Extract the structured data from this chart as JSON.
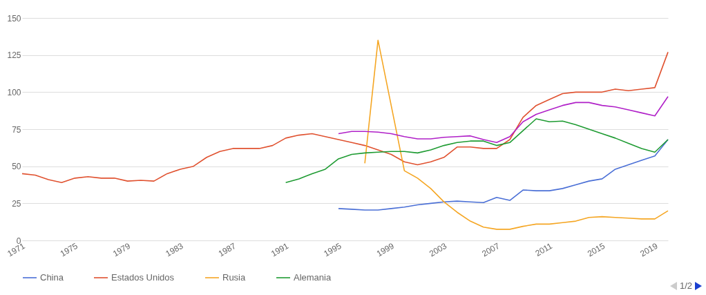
{
  "chart_data": {
    "type": "line",
    "legend": "bottom",
    "grid": "y",
    "line_style": "solid",
    "xlim": [
      1971,
      2020
    ],
    "xticks": [
      1971,
      1975,
      1979,
      1983,
      1987,
      1991,
      1995,
      1999,
      2003,
      2007,
      2011,
      2015,
      2019
    ],
    "ylim": [
      0,
      150
    ],
    "yticks": [
      0,
      25,
      50,
      75,
      100,
      125,
      150
    ],
    "annotations": [
      "1/2"
    ],
    "series": [
      {
        "name": "China",
        "color": "#4a6fd6",
        "x": [
          1995,
          1996,
          1997,
          1998,
          1999,
          2000,
          2001,
          2002,
          2003,
          2004,
          2005,
          2006,
          2007,
          2008,
          2009,
          2010,
          2011,
          2012,
          2013,
          2014,
          2015,
          2016,
          2017,
          2018,
          2019,
          2020
        ],
        "values": [
          21.5,
          21,
          20.5,
          20.5,
          21.5,
          22.5,
          24,
          25,
          26,
          26.5,
          26,
          25.5,
          29,
          27,
          34,
          33.5,
          33.5,
          35,
          37.5,
          40,
          41.5,
          48,
          51,
          54,
          57,
          68
        ]
      },
      {
        "name": "Estados Unidos",
        "color": "#e0512f",
        "x": [
          1971,
          1972,
          1973,
          1974,
          1975,
          1976,
          1977,
          1978,
          1979,
          1980,
          1981,
          1982,
          1983,
          1984,
          1985,
          1986,
          1987,
          1988,
          1989,
          1990,
          1991,
          1992,
          1993,
          1994,
          1995,
          1996,
          1997,
          1998,
          1999,
          2000,
          2001,
          2002,
          2003,
          2004,
          2005,
          2006,
          2007,
          2008,
          2009,
          2010,
          2011,
          2012,
          2013,
          2014,
          2015,
          2016,
          2017,
          2018,
          2019,
          2020
        ],
        "values": [
          45,
          44,
          41,
          39,
          42,
          43,
          42,
          42,
          40,
          40.5,
          40,
          45,
          48,
          50,
          56,
          60,
          62,
          62,
          62,
          64,
          69,
          71,
          72,
          70,
          68,
          66,
          64,
          61,
          58,
          53,
          51,
          53,
          56,
          63,
          63,
          62,
          62,
          68,
          83,
          91,
          95,
          99,
          100,
          100,
          100,
          102,
          101,
          102,
          103,
          127
        ]
      },
      {
        "name": "Rusia",
        "color": "#f5a623",
        "x": [
          1997,
          1998,
          1999,
          2000,
          2001,
          2002,
          2003,
          2004,
          2005,
          2006,
          2007,
          2008,
          2009,
          2010,
          2011,
          2012,
          2013,
          2014,
          2015,
          2016,
          2017,
          2018,
          2019,
          2020
        ],
        "values": [
          52,
          135,
          91,
          47,
          42,
          35,
          26,
          19,
          13,
          9,
          7.5,
          7.5,
          9.5,
          11,
          11,
          12,
          13,
          15.5,
          16,
          15.5,
          15,
          14.5,
          14.5,
          20
        ]
      },
      {
        "name": "Alemania",
        "color": "#1e9b32",
        "x": [
          1991,
          1992,
          1993,
          1994,
          1995,
          1996,
          1997,
          1998,
          1999,
          2000,
          2001,
          2002,
          2003,
          2004,
          2005,
          2006,
          2007,
          2008,
          2009,
          2010,
          2011,
          2012,
          2013,
          2014,
          2015,
          2016,
          2017,
          2018,
          2019,
          2020
        ],
        "values": [
          39,
          41.5,
          45,
          48,
          55,
          58,
          59,
          59.5,
          60,
          60,
          59,
          61,
          64,
          66,
          67,
          67,
          64,
          66,
          74,
          82,
          80,
          80.5,
          78,
          75,
          72,
          69,
          65.5,
          62,
          59.5,
          68
        ]
      },
      {
        "color": "#b020c8",
        "x": [
          1995,
          1996,
          1997,
          1998,
          1999,
          2000,
          2001,
          2002,
          2003,
          2004,
          2005,
          2006,
          2007,
          2008,
          2009,
          2010,
          2011,
          2012,
          2013,
          2014,
          2015,
          2016,
          2017,
          2018,
          2019,
          2020
        ],
        "values": [
          72,
          73.5,
          73.5,
          73,
          72,
          70,
          68.5,
          68.5,
          69.5,
          70,
          70.5,
          68,
          66,
          70,
          80,
          85,
          88,
          91,
          93,
          93,
          91,
          90,
          88,
          86,
          84,
          97
        ]
      }
    ]
  }
}
